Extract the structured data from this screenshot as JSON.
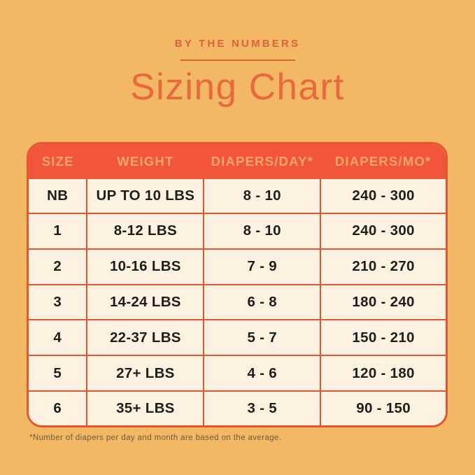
{
  "chart_data": {
    "type": "table",
    "subtitle": "BY THE NUMBERS",
    "title": "Sizing Chart",
    "columns": [
      "SIZE",
      "WEIGHT",
      "DIAPERS/DAY*",
      "DIAPERS/MO*"
    ],
    "rows": [
      [
        "NB",
        "UP TO 10 LBS",
        "8 - 10",
        "240 - 300"
      ],
      [
        "1",
        "8-12 LBS",
        "8 - 10",
        "240 - 300"
      ],
      [
        "2",
        "10-16 LBS",
        "7 - 9",
        "210 - 270"
      ],
      [
        "3",
        "14-24 LBS",
        "6 - 8",
        "180 - 240"
      ],
      [
        "4",
        "22-37 LBS",
        "5 - 7",
        "150 - 210"
      ],
      [
        "5",
        "27+ LBS",
        "4 - 6",
        "120 - 180"
      ],
      [
        "6",
        "35+ LBS",
        "3 - 5",
        "90 - 150"
      ]
    ],
    "footnote": "*Number of diapers per day and month are based on the average.",
    "layout": {
      "legend": "none",
      "grid": "table borders"
    }
  },
  "colors": {
    "background": "#f3b863",
    "accent_red": "#e8542f",
    "header_fill": "#f1563a",
    "header_text": "#f3a565",
    "cell_background": "#fdf2e1",
    "body_text": "#211d19",
    "eyebrow_text": "#dd6238",
    "title_text": "#e9683d",
    "footnote_text": "#6d5b41"
  }
}
